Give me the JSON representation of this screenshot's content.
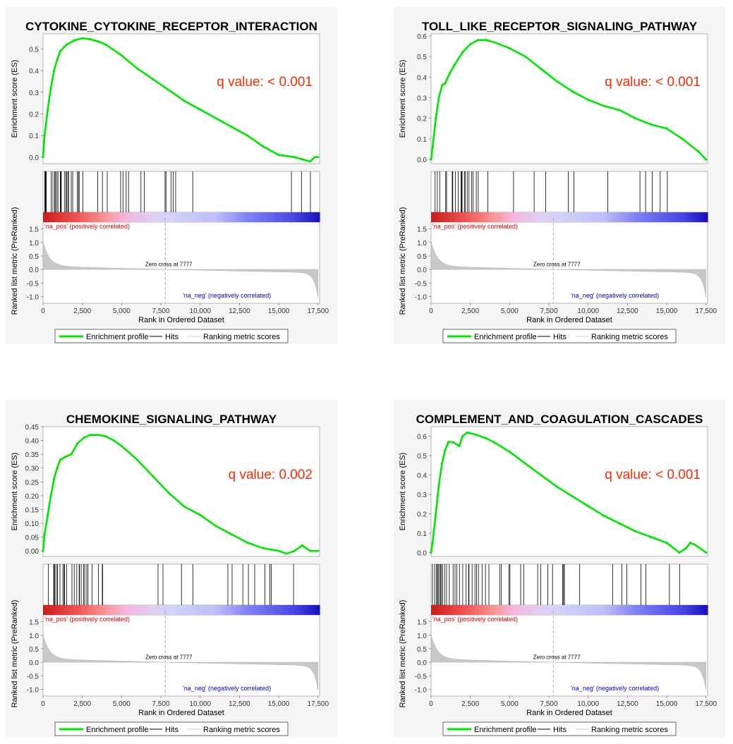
{
  "common": {
    "es_axis_label": "Enrichment score (ES)",
    "metric_axis_label": "Ranked list metric (PreRanked)",
    "x_axis_label": "Rank in Ordered Dataset",
    "pos_label": "'na_pos' (positively correlated)",
    "neg_label": "'na_neg' (negatively correlated)",
    "zero_cross_label": "Zero cross at 7777",
    "zero_cross": 7777,
    "x_ticks": [
      0,
      2500,
      5000,
      7500,
      10000,
      12500,
      15000,
      17500
    ],
    "x_tick_labels": [
      "0",
      "2,500",
      "5,000",
      "7,500",
      "10,000",
      "12,500",
      "15,000",
      "17,500"
    ],
    "metric_ticks": [
      1.5,
      1.0,
      0.5,
      0.0,
      -0.5,
      -1.0
    ],
    "metric_tick_labels": [
      "1.5",
      "1.0",
      "0.5",
      "0.0",
      "-0.5",
      "-1.0"
    ],
    "legend": {
      "enrichment_profile": "Enrichment profile",
      "hits": "Hits",
      "ranking_metric_scores": "Ranking metric scores"
    },
    "colors": {
      "enrichment": "#00e600",
      "q_value": "#ff2a00",
      "pos_label": "#e00000",
      "neg_label": "#0000e0",
      "metric_fill": "#c8c8c8"
    }
  },
  "chart_data": [
    {
      "type": "line",
      "title": "CYTOKINE_CYTOKINE_RECEPTOR_INTERACTION",
      "q_value_text": "q value: < 0.001",
      "xlim": [
        0,
        17600
      ],
      "ylim": [
        -0.03,
        0.57
      ],
      "y_ticks": [
        0.0,
        0.1,
        0.2,
        0.3,
        0.4,
        0.5
      ],
      "y_tick_labels": [
        "0.0",
        "0.1",
        "0.2",
        "0.3",
        "0.4",
        "0.5"
      ],
      "series": [
        {
          "x": [
            0,
            100,
            300,
            500,
            700,
            900,
            1100,
            1500,
            2000,
            2500,
            3000,
            3500,
            4000,
            5000,
            6000,
            7000,
            8000,
            9000,
            10000,
            11000,
            12000,
            13000,
            14000,
            15000,
            16000,
            16500,
            17000,
            17300,
            17500
          ],
          "y": [
            0.0,
            0.1,
            0.22,
            0.32,
            0.4,
            0.45,
            0.49,
            0.52,
            0.54,
            0.55,
            0.545,
            0.535,
            0.52,
            0.47,
            0.41,
            0.36,
            0.31,
            0.26,
            0.22,
            0.18,
            0.14,
            0.1,
            0.05,
            0.01,
            0.0,
            -0.01,
            -0.02,
            0.0,
            0.0
          ]
        }
      ]
    },
    {
      "type": "line",
      "title": "TOLL_LIKE_RECEPTOR_SIGNALING_PATHWAY",
      "q_value_text": "q value: < 0.001",
      "xlim": [
        0,
        17600
      ],
      "ylim": [
        -0.02,
        0.61
      ],
      "y_ticks": [
        0.0,
        0.1,
        0.2,
        0.3,
        0.4,
        0.5,
        0.6
      ],
      "y_tick_labels": [
        "0.0",
        "0.1",
        "0.2",
        "0.3",
        "0.4",
        "0.5",
        "0.6"
      ],
      "series": [
        {
          "x": [
            0,
            100,
            300,
            500,
            700,
            900,
            1200,
            1500,
            2000,
            2500,
            3000,
            3500,
            4000,
            5000,
            6000,
            7000,
            8000,
            9000,
            10000,
            11000,
            12000,
            13000,
            14000,
            15000,
            16000,
            17000,
            17500
          ],
          "y": [
            0.0,
            0.06,
            0.2,
            0.3,
            0.36,
            0.37,
            0.42,
            0.46,
            0.52,
            0.56,
            0.58,
            0.58,
            0.57,
            0.54,
            0.5,
            0.44,
            0.38,
            0.33,
            0.29,
            0.26,
            0.24,
            0.2,
            0.17,
            0.15,
            0.1,
            0.04,
            0.0
          ]
        }
      ]
    },
    {
      "type": "line",
      "title": "CHEMOKINE_SIGNALING_PATHWAY",
      "q_value_text": "q value: 0.002",
      "xlim": [
        0,
        17600
      ],
      "ylim": [
        -0.02,
        0.45
      ],
      "y_ticks": [
        0.0,
        0.05,
        0.1,
        0.15,
        0.2,
        0.25,
        0.3,
        0.35,
        0.4,
        0.45
      ],
      "y_tick_labels": [
        "0.00",
        "0.05",
        "0.10",
        "0.15",
        "0.20",
        "0.25",
        "0.30",
        "0.35",
        "0.40",
        "0.45"
      ],
      "series": [
        {
          "x": [
            0,
            100,
            300,
            500,
            700,
            900,
            1100,
            1400,
            1800,
            2200,
            2600,
            3000,
            3500,
            4000,
            4500,
            5000,
            6000,
            7000,
            8000,
            9000,
            10000,
            11000,
            12000,
            13000,
            14000,
            15000,
            15500,
            16000,
            16500,
            17000,
            17500
          ],
          "y": [
            0.0,
            0.06,
            0.13,
            0.2,
            0.26,
            0.3,
            0.33,
            0.34,
            0.35,
            0.39,
            0.41,
            0.42,
            0.42,
            0.415,
            0.4,
            0.38,
            0.33,
            0.27,
            0.21,
            0.16,
            0.13,
            0.09,
            0.06,
            0.03,
            0.01,
            0.0,
            -0.01,
            0.0,
            0.02,
            0.0,
            0.0
          ]
        }
      ]
    },
    {
      "type": "line",
      "title": "COMPLEMENT_AND_COAGULATION_CASCADES",
      "q_value_text": "q value: < 0.001",
      "xlim": [
        0,
        17600
      ],
      "ylim": [
        -0.02,
        0.65
      ],
      "y_ticks": [
        0.0,
        0.1,
        0.2,
        0.3,
        0.4,
        0.5,
        0.6
      ],
      "y_tick_labels": [
        "0.0",
        "0.1",
        "0.2",
        "0.3",
        "0.4",
        "0.5",
        "0.6"
      ],
      "series": [
        {
          "x": [
            0,
            100,
            300,
            500,
            700,
            900,
            1100,
            1400,
            1800,
            2000,
            2300,
            2800,
            3500,
            4000,
            5000,
            6000,
            7000,
            8000,
            9000,
            10000,
            11000,
            12000,
            13000,
            14000,
            15000,
            15800,
            16200,
            16500,
            16800,
            17500
          ],
          "y": [
            0.0,
            0.05,
            0.2,
            0.35,
            0.46,
            0.53,
            0.57,
            0.57,
            0.55,
            0.6,
            0.62,
            0.61,
            0.59,
            0.57,
            0.52,
            0.46,
            0.4,
            0.34,
            0.29,
            0.24,
            0.19,
            0.15,
            0.11,
            0.08,
            0.05,
            0.0,
            0.02,
            0.05,
            0.04,
            0.0
          ]
        }
      ]
    }
  ]
}
